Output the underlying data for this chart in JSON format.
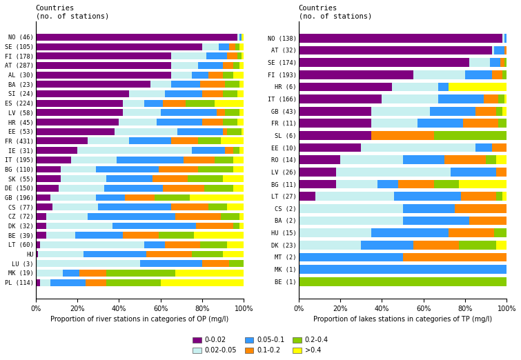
{
  "rivers": {
    "countries": [
      "NO (46)",
      "SE (105)",
      "FI (178)",
      "AT (287)",
      "AL (30)",
      "BA (23)",
      "SI (24)",
      "ES (224)",
      "LV (58)",
      "HR (45)",
      "EE (53)",
      "FR (431)",
      "IE (31)",
      "IT (195)",
      "BG (110)",
      "SK (55)",
      "DE (150)",
      "GB (196)",
      "CS (77)",
      "CZ (72)",
      "DK (32)",
      "BE (39)",
      "LT (60)",
      "HU",
      "LU (3)",
      "MK (19)",
      "PL (114)"
    ],
    "data": [
      [
        97,
        1,
        1,
        0,
        0,
        1
      ],
      [
        80,
        8,
        5,
        3,
        2,
        2
      ],
      [
        65,
        17,
        10,
        5,
        2,
        1
      ],
      [
        65,
        13,
        12,
        5,
        3,
        2
      ],
      [
        65,
        10,
        8,
        7,
        5,
        5
      ],
      [
        55,
        10,
        14,
        12,
        7,
        2
      ],
      [
        45,
        17,
        18,
        10,
        7,
        3
      ],
      [
        42,
        10,
        9,
        11,
        14,
        14
      ],
      [
        42,
        18,
        27,
        4,
        7,
        2
      ],
      [
        40,
        18,
        22,
        10,
        7,
        3
      ],
      [
        38,
        30,
        22,
        2,
        7,
        1
      ],
      [
        25,
        20,
        20,
        13,
        11,
        11
      ],
      [
        20,
        55,
        16,
        4,
        3,
        2
      ],
      [
        17,
        22,
        32,
        15,
        9,
        5
      ],
      [
        12,
        17,
        30,
        19,
        17,
        5
      ],
      [
        12,
        22,
        22,
        17,
        17,
        10
      ],
      [
        11,
        22,
        28,
        20,
        14,
        5
      ],
      [
        7,
        22,
        14,
        14,
        17,
        26
      ],
      [
        8,
        22,
        35,
        18,
        9,
        8
      ],
      [
        5,
        20,
        42,
        22,
        9,
        2
      ],
      [
        5,
        32,
        40,
        18,
        3,
        2
      ],
      [
        5,
        14,
        23,
        17,
        17,
        24
      ],
      [
        2,
        50,
        10,
        17,
        13,
        8
      ],
      [
        1,
        22,
        30,
        22,
        15,
        10
      ],
      [
        0,
        50,
        30,
        13,
        7,
        0
      ],
      [
        0,
        13,
        8,
        13,
        33,
        33
      ],
      [
        2,
        5,
        17,
        10,
        26,
        40
      ]
    ]
  },
  "lakes": {
    "countries": [
      "NO (138)",
      "AT (32)",
      "SE (174)",
      "FI (193)",
      "HR (6)",
      "IT (166)",
      "GB (43)",
      "FR (11)",
      "SL (6)",
      "EE (10)",
      "RO (14)",
      "LV (26)",
      "BG (11)",
      "LT (27)",
      "CS (2)",
      "BA (2)",
      "HU (15)",
      "DK (23)",
      "MT (2)",
      "MK (1)",
      "BE (1)"
    ],
    "data": [
      [
        98,
        1,
        1,
        0,
        0,
        0
      ],
      [
        93,
        1,
        5,
        1,
        0,
        0
      ],
      [
        82,
        10,
        5,
        2,
        1,
        0
      ],
      [
        55,
        25,
        13,
        5,
        2,
        0
      ],
      [
        45,
        22,
        5,
        0,
        0,
        28
      ],
      [
        40,
        27,
        22,
        7,
        3,
        1
      ],
      [
        35,
        28,
        22,
        10,
        3,
        2
      ],
      [
        35,
        22,
        22,
        17,
        4,
        0
      ],
      [
        35,
        0,
        0,
        30,
        35,
        0
      ],
      [
        30,
        55,
        8,
        7,
        0,
        0
      ],
      [
        20,
        30,
        20,
        20,
        5,
        5
      ],
      [
        18,
        55,
        22,
        5,
        0,
        0
      ],
      [
        18,
        20,
        10,
        17,
        12,
        23
      ],
      [
        8,
        38,
        32,
        17,
        3,
        2
      ],
      [
        0,
        50,
        25,
        25,
        0,
        0
      ],
      [
        0,
        50,
        32,
        18,
        0,
        0
      ],
      [
        0,
        35,
        37,
        22,
        6,
        0
      ],
      [
        0,
        30,
        25,
        22,
        18,
        5
      ],
      [
        0,
        0,
        50,
        50,
        0,
        0
      ],
      [
        0,
        0,
        100,
        0,
        0,
        0
      ],
      [
        0,
        0,
        0,
        0,
        100,
        0
      ]
    ]
  },
  "colors": [
    "#7f007f",
    "#c8f0f0",
    "#3399ff",
    "#ff8800",
    "#88cc00",
    "#ffff00"
  ],
  "legend_labels": [
    "0-0.02",
    "0.02-0.05",
    "0.05-0.1",
    "0.1-0.2",
    "0.2-0.4",
    ">0.4"
  ],
  "river_xlabel": "Proportion of river stations in categories of OP (mg/l)",
  "lake_xlabel": "Proportion of lakes stations in categories of TP (mg/l)",
  "ylabel": "Countries\n(no. of stations)"
}
